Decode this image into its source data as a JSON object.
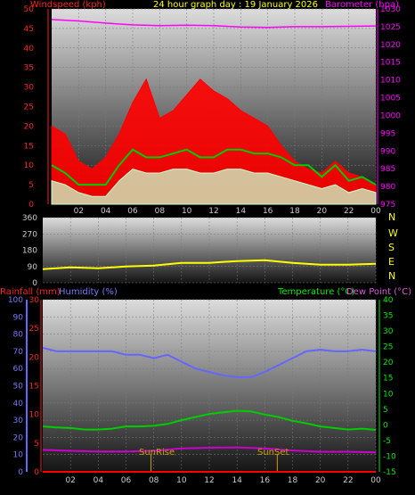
{
  "header": {
    "title": "24 hour graph day : 19 January 2026",
    "windspeed_label": "Windspeed (kph)",
    "barometer_label": "Barometer (hpa)"
  },
  "direction_labels": [
    "N",
    "W",
    "S",
    "E",
    "N"
  ],
  "bottom_header": {
    "rainfall_label": "Rainfall (mm)",
    "humidity_label": "Humidity (%)",
    "temperature_label": "Temperature (°C)",
    "dewpoint_label": "Dew Point (°C)"
  },
  "events": {
    "sunrise_label": "SunRise",
    "sunset_label": "SunSet",
    "sunrise_hour": 7.8,
    "sunset_hour": 16.9
  },
  "colors": {
    "windspeed": "#ff0000",
    "barometer": "#ff00ff",
    "gust_avg": "#00cc00",
    "wind_avg": "#ccffcc",
    "direction": "#ffff00",
    "rainfall": "#ff0000",
    "humidity": "#6666ff",
    "temperature": "#00cc00",
    "dewpoint": "#cc00cc",
    "event": "#c8a000"
  },
  "chart_data": [
    {
      "type": "line",
      "name": "wind-barometer",
      "x_ticks": [
        "02",
        "04",
        "06",
        "08",
        "10",
        "12",
        "14",
        "16",
        "18",
        "20",
        "22",
        "00"
      ],
      "xlim": [
        0,
        24
      ],
      "ylim_left": [
        0,
        50
      ],
      "left_ticks": [
        "0",
        "5",
        "10",
        "15",
        "20",
        "25",
        "30",
        "35",
        "40",
        "45",
        "50"
      ],
      "ylim_right": [
        975,
        1030
      ],
      "right_ticks": [
        "975",
        "980",
        "985",
        "990",
        "995",
        "1000",
        "1005",
        "1010",
        "1015",
        "1020",
        "1025",
        "1030"
      ],
      "series": [
        {
          "name": "Windspeed (kph)",
          "axis": "left",
          "style": "gust",
          "x": [
            0,
            1,
            2,
            3,
            4,
            5,
            6,
            7,
            8,
            9,
            10,
            11,
            12,
            13,
            14,
            15,
            16,
            17,
            18,
            19,
            20,
            21,
            22,
            23,
            24
          ],
          "values": [
            20,
            18,
            11,
            9,
            12,
            18,
            26,
            32,
            22,
            24,
            28,
            32,
            29,
            27,
            24,
            22,
            20,
            15,
            11,
            9,
            8,
            11,
            8,
            7,
            5
          ]
        },
        {
          "name": "Average Gust",
          "axis": "left",
          "style": "avg",
          "x": [
            0,
            1,
            2,
            3,
            4,
            5,
            6,
            7,
            8,
            9,
            10,
            11,
            12,
            13,
            14,
            15,
            16,
            17,
            18,
            19,
            20,
            21,
            22,
            23,
            24
          ],
          "values": [
            10,
            8,
            5,
            5,
            5,
            10,
            14,
            12,
            12,
            13,
            14,
            12,
            12,
            14,
            14,
            13,
            13,
            12,
            10,
            10,
            7,
            10,
            6,
            7,
            5
          ]
        },
        {
          "name": "Average Wind",
          "axis": "left",
          "style": "low",
          "x": [
            0,
            1,
            2,
            3,
            4,
            5,
            6,
            7,
            8,
            9,
            10,
            11,
            12,
            13,
            14,
            15,
            16,
            17,
            18,
            19,
            20,
            21,
            22,
            23,
            24
          ],
          "values": [
            6,
            5,
            3,
            2,
            2,
            6,
            9,
            8,
            8,
            9,
            9,
            8,
            8,
            9,
            9,
            8,
            8,
            7,
            6,
            5,
            4,
            5,
            3,
            4,
            3
          ]
        },
        {
          "name": "Barometer (hpa)",
          "axis": "right",
          "x": [
            0,
            2,
            4,
            6,
            8,
            10,
            12,
            14,
            16,
            18,
            20,
            22,
            24
          ],
          "values": [
            1027,
            1026.6,
            1026,
            1025.5,
            1025.3,
            1025.4,
            1025.3,
            1024.9,
            1024.8,
            1025.0,
            1025.0,
            1025.1,
            1025.2
          ]
        }
      ]
    },
    {
      "type": "line",
      "name": "wind-direction",
      "xlim": [
        0,
        24
      ],
      "ylim": [
        0,
        360
      ],
      "y_ticks": [
        "0",
        "90",
        "180",
        "270",
        "360"
      ],
      "series": [
        {
          "name": "Direction",
          "x": [
            0,
            2,
            4,
            6,
            8,
            10,
            12,
            14,
            16,
            18,
            20,
            22,
            24
          ],
          "values": [
            75,
            85,
            80,
            90,
            95,
            110,
            110,
            120,
            125,
            110,
            100,
            100,
            105
          ]
        }
      ]
    },
    {
      "type": "line",
      "name": "rain-humidity-temperature",
      "x_ticks": [
        "02",
        "04",
        "06",
        "08",
        "10",
        "12",
        "14",
        "16",
        "18",
        "20",
        "22",
        "00"
      ],
      "xlim": [
        0,
        24
      ],
      "ylim_rain": [
        0,
        30
      ],
      "rain_ticks": [
        "0",
        "5",
        "10",
        "15",
        "20",
        "25",
        "30"
      ],
      "ylim_humidity": [
        0,
        100
      ],
      "humidity_ticks": [
        "0",
        "10",
        "20",
        "30",
        "40",
        "50",
        "60",
        "70",
        "80",
        "90",
        "100"
      ],
      "ylim_temp": [
        -15,
        40
      ],
      "temp_ticks": [
        "-15",
        "-10",
        "-5",
        "0",
        "5",
        "10",
        "15",
        "20",
        "25",
        "30",
        "35",
        "40"
      ],
      "series": [
        {
          "name": "Humidity (%)",
          "axis": "humidity",
          "x": [
            0,
            1,
            2,
            3,
            4,
            5,
            6,
            7,
            8,
            9,
            10,
            11,
            12,
            13,
            14,
            15,
            16,
            17,
            18,
            19,
            20,
            21,
            22,
            23,
            24
          ],
          "values": [
            72,
            70,
            70,
            70,
            70,
            70,
            68,
            68,
            66,
            68,
            64,
            60,
            58,
            56,
            55,
            55,
            58,
            62,
            66,
            70,
            71,
            70,
            70,
            71,
            70
          ]
        },
        {
          "name": "Temperature (°C)",
          "axis": "temp",
          "x": [
            0,
            1,
            2,
            3,
            4,
            5,
            6,
            7,
            8,
            9,
            10,
            11,
            12,
            13,
            14,
            15,
            16,
            17,
            18,
            19,
            20,
            21,
            22,
            23,
            24
          ],
          "values": [
            -0.5,
            -0.8,
            -1.0,
            -1.5,
            -1.5,
            -1.2,
            -0.5,
            -0.5,
            -0.3,
            0.3,
            1.5,
            2.5,
            3.5,
            4.0,
            4.5,
            4.3,
            3.3,
            2.5,
            1.3,
            0.5,
            -0.5,
            -1.0,
            -1.5,
            -1.2,
            -1.6
          ]
        },
        {
          "name": "Dew Point (°C)",
          "axis": "temp",
          "x": [
            0,
            2,
            4,
            6,
            8,
            10,
            12,
            14,
            16,
            18,
            20,
            22,
            24
          ],
          "values": [
            -8.0,
            -8.3,
            -8.5,
            -8.5,
            -8.3,
            -7.5,
            -7.3,
            -7.2,
            -7.5,
            -8.2,
            -8.6,
            -8.6,
            -8.8
          ]
        },
        {
          "name": "Rainfall (mm)",
          "axis": "rain",
          "x": [
            0,
            24
          ],
          "values": [
            0,
            0
          ]
        }
      ]
    }
  ]
}
